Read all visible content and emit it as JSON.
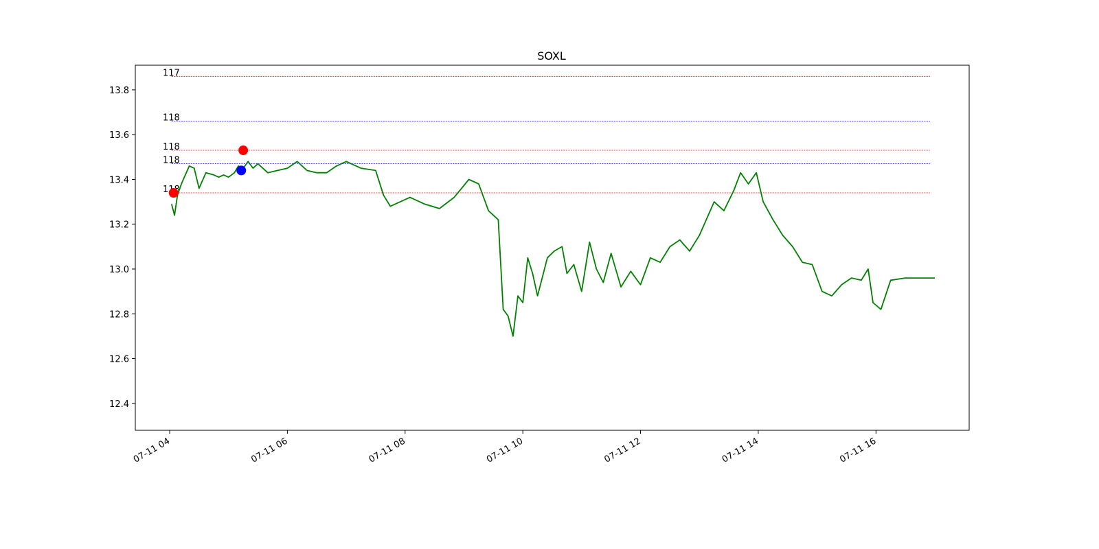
{
  "chart_data": {
    "type": "line",
    "title": "SOXL",
    "xlabel": "",
    "ylabel": "",
    "x_ticks": [
      "07-11 04",
      "07-11 06",
      "07-11 08",
      "07-11 10",
      "07-11 12",
      "07-11 14",
      "07-11 16"
    ],
    "y_ticks": [
      "12.4",
      "12.6",
      "12.8",
      "13.0",
      "13.2",
      "13.4",
      "13.6",
      "13.8"
    ],
    "xlim": [
      "2023-07-11T03:25",
      "2023-07-11T17:35"
    ],
    "ylim": [
      12.28,
      13.91
    ],
    "grid": false,
    "colors": {
      "line": "#008000",
      "sell": "#ff0000",
      "buy": "#0000ff"
    },
    "series": [
      {
        "x": [
          "2023-07-11T04:02",
          "2023-07-11T04:05",
          "2023-07-11T04:08",
          "2023-07-11T04:12",
          "2023-07-11T04:16",
          "2023-07-11T04:20",
          "2023-07-11T04:25",
          "2023-07-11T04:30",
          "2023-07-11T04:37",
          "2023-07-11T04:45",
          "2023-07-11T04:50",
          "2023-07-11T04:55",
          "2023-07-11T05:00",
          "2023-07-11T05:06",
          "2023-07-11T05:10",
          "2023-07-11T05:15",
          "2023-07-11T05:20",
          "2023-07-11T05:25",
          "2023-07-11T05:30",
          "2023-07-11T05:40",
          "2023-07-11T05:50",
          "2023-07-11T06:00",
          "2023-07-11T06:10",
          "2023-07-11T06:20",
          "2023-07-11T06:30",
          "2023-07-11T06:40",
          "2023-07-11T06:50",
          "2023-07-11T07:00",
          "2023-07-11T07:15",
          "2023-07-11T07:30",
          "2023-07-11T07:38",
          "2023-07-11T07:45",
          "2023-07-11T07:55",
          "2023-07-11T08:05",
          "2023-07-11T08:20",
          "2023-07-11T08:35",
          "2023-07-11T08:50",
          "2023-07-11T09:05",
          "2023-07-11T09:15",
          "2023-07-11T09:25",
          "2023-07-11T09:35",
          "2023-07-11T09:40",
          "2023-07-11T09:45",
          "2023-07-11T09:50",
          "2023-07-11T09:55",
          "2023-07-11T10:00",
          "2023-07-11T10:05",
          "2023-07-11T10:10",
          "2023-07-11T10:15",
          "2023-07-11T10:25",
          "2023-07-11T10:32",
          "2023-07-11T10:40",
          "2023-07-11T10:45",
          "2023-07-11T10:52",
          "2023-07-11T11:00",
          "2023-07-11T11:08",
          "2023-07-11T11:15",
          "2023-07-11T11:22",
          "2023-07-11T11:30",
          "2023-07-11T11:40",
          "2023-07-11T11:50",
          "2023-07-11T12:00",
          "2023-07-11T12:10",
          "2023-07-11T12:20",
          "2023-07-11T12:30",
          "2023-07-11T12:40",
          "2023-07-11T12:50",
          "2023-07-11T13:00",
          "2023-07-11T13:15",
          "2023-07-11T13:25",
          "2023-07-11T13:35",
          "2023-07-11T13:42",
          "2023-07-11T13:50",
          "2023-07-11T13:58",
          "2023-07-11T14:05",
          "2023-07-11T14:15",
          "2023-07-11T14:25",
          "2023-07-11T14:35",
          "2023-07-11T14:45",
          "2023-07-11T14:55",
          "2023-07-11T15:05",
          "2023-07-11T15:15",
          "2023-07-11T15:25",
          "2023-07-11T15:35",
          "2023-07-11T15:45",
          "2023-07-11T15:52",
          "2023-07-11T15:57",
          "2023-07-11T16:05",
          "2023-07-11T16:15",
          "2023-07-11T16:30",
          "2023-07-11T17:00",
          "2023-07-11T17:00"
        ],
        "values": [
          13.29,
          13.24,
          13.33,
          13.38,
          13.42,
          13.46,
          13.45,
          13.36,
          13.43,
          13.42,
          13.41,
          13.42,
          13.41,
          13.43,
          13.46,
          13.45,
          13.48,
          13.45,
          13.47,
          13.43,
          13.44,
          13.45,
          13.48,
          13.44,
          13.43,
          13.43,
          13.46,
          13.48,
          13.45,
          13.44,
          13.33,
          13.28,
          13.3,
          13.32,
          13.29,
          13.27,
          13.32,
          13.4,
          13.38,
          13.26,
          13.22,
          12.82,
          12.79,
          12.7,
          12.88,
          12.85,
          13.05,
          12.98,
          12.88,
          13.05,
          13.08,
          13.1,
          12.98,
          13.02,
          12.9,
          13.12,
          13.0,
          12.94,
          13.07,
          12.92,
          12.99,
          12.93,
          13.05,
          13.03,
          13.1,
          13.13,
          13.08,
          13.15,
          13.3,
          13.26,
          13.35,
          13.43,
          13.38,
          13.43,
          13.3,
          13.22,
          13.15,
          13.1,
          13.03,
          13.02,
          12.9,
          12.88,
          12.93,
          12.96,
          12.95,
          13.0,
          12.85,
          12.82,
          12.95,
          12.96,
          12.96,
          12.96
        ]
      }
    ],
    "hlines": [
      {
        "y": 13.86,
        "label": "117",
        "color": "#ff0000"
      },
      {
        "y": 13.66,
        "label": "118",
        "color": "#0000ff"
      },
      {
        "y": 13.53,
        "label": "118",
        "color": "#ff0000"
      },
      {
        "y": 13.47,
        "label": "118",
        "color": "#0000ff"
      },
      {
        "y": 13.34,
        "label": "118",
        "color": "#ff0000"
      }
    ],
    "markers": [
      {
        "x": "2023-07-11T04:04",
        "y": 13.34,
        "color": "#ff0000"
      },
      {
        "x": "2023-07-11T05:15",
        "y": 13.53,
        "color": "#ff0000"
      },
      {
        "x": "2023-07-11T05:13",
        "y": 13.44,
        "color": "#0000ff"
      }
    ]
  }
}
